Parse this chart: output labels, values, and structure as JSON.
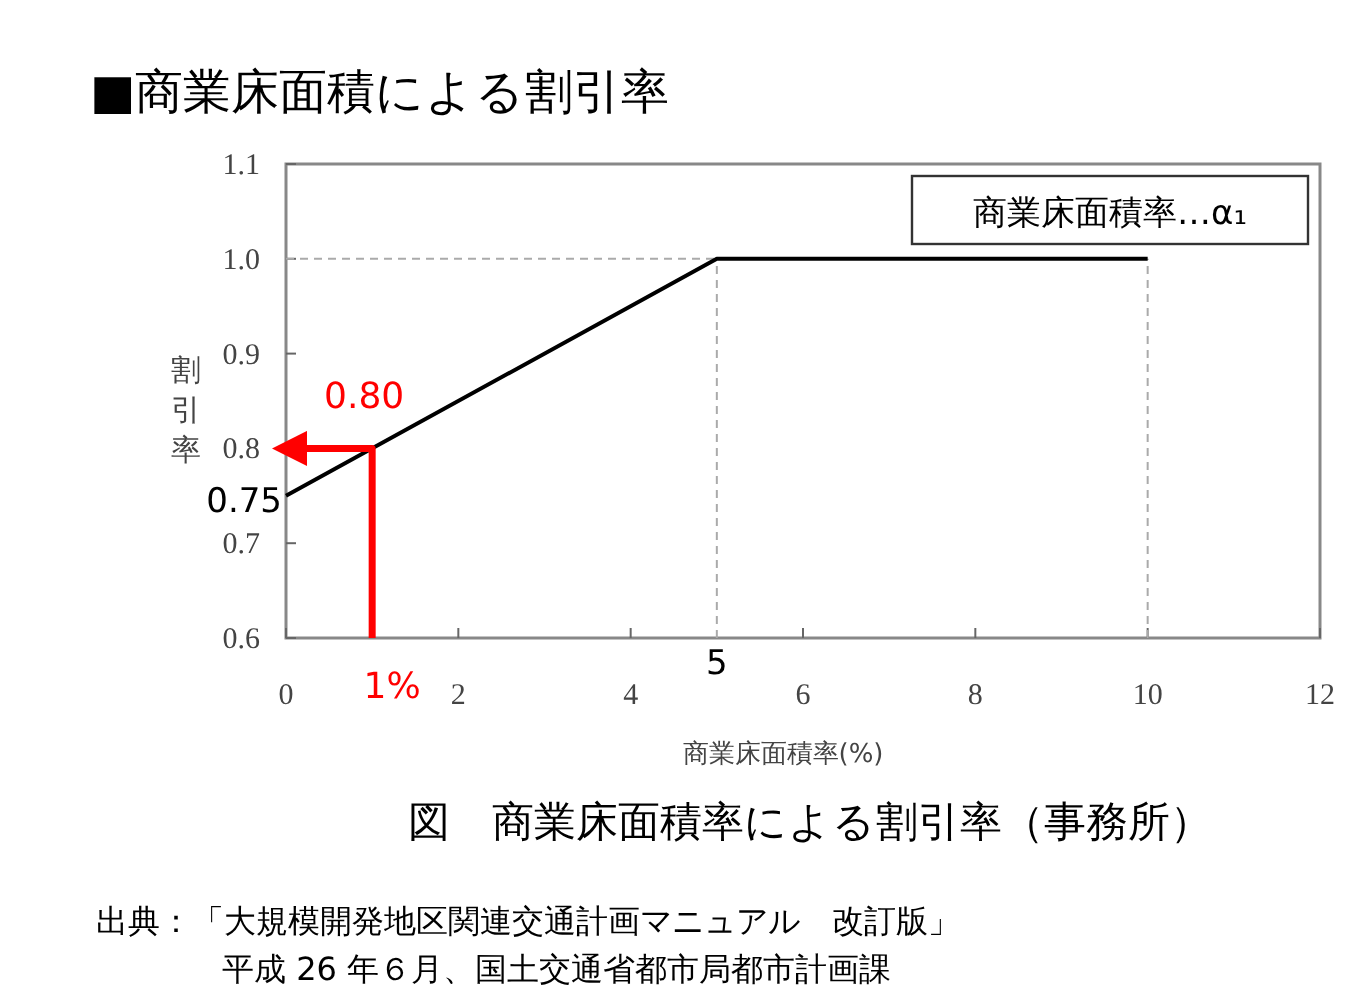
{
  "chart_data": {
    "type": "line",
    "title": "■商業床面積による割引率",
    "xlabel": "商業床面積率(%)",
    "ylabel": "割引率",
    "xlim": [
      0,
      12
    ],
    "xticks": [
      0,
      2,
      4,
      6,
      8,
      10,
      12
    ],
    "ylim": [
      0.6,
      1.1
    ],
    "yticks": [
      0.6,
      0.7,
      0.8,
      0.9,
      {
        "value": 1.0,
        "label": "1.0"
      },
      1.1
    ],
    "series": [
      {
        "color": "#000000",
        "x": [
          0,
          5,
          10
        ],
        "values": [
          0.75,
          1.0,
          1.0
        ]
      },
      {
        "color": "#ff0000",
        "x": [
          1,
          1,
          0
        ],
        "values": [
          0.6,
          0.8,
          0.8
        ]
      }
    ],
    "annotations": [
      "商業床面積率…α₁",
      "図　商業床面積率による割引率（事務所）",
      "出典：「大規模開発地区関連交通計画マニュアル　改訂版」",
      "平成 26 年６月、国土交通省都市局都市計画課",
      {
        "text": "0.80",
        "x": 1,
        "y": 0.8
      },
      {
        "text": "1%",
        "x": 1,
        "y": 0.6
      },
      {
        "text": "0.75",
        "x": 0,
        "y": 0.75
      },
      {
        "text": "5",
        "x": 5,
        "y": 0.6
      }
    ],
    "ref_lines": [
      {
        "axis": "y",
        "value": 1.0,
        "color": "#aaaaaa",
        "line_style": "dashed"
      },
      {
        "axis": "x",
        "value": 5,
        "color": "#aaaaaa",
        "line_style": "dashed"
      },
      {
        "axis": "x",
        "value": 10,
        "color": "#aaaaaa",
        "line_style": "dashed"
      }
    ],
    "grid": false
  }
}
